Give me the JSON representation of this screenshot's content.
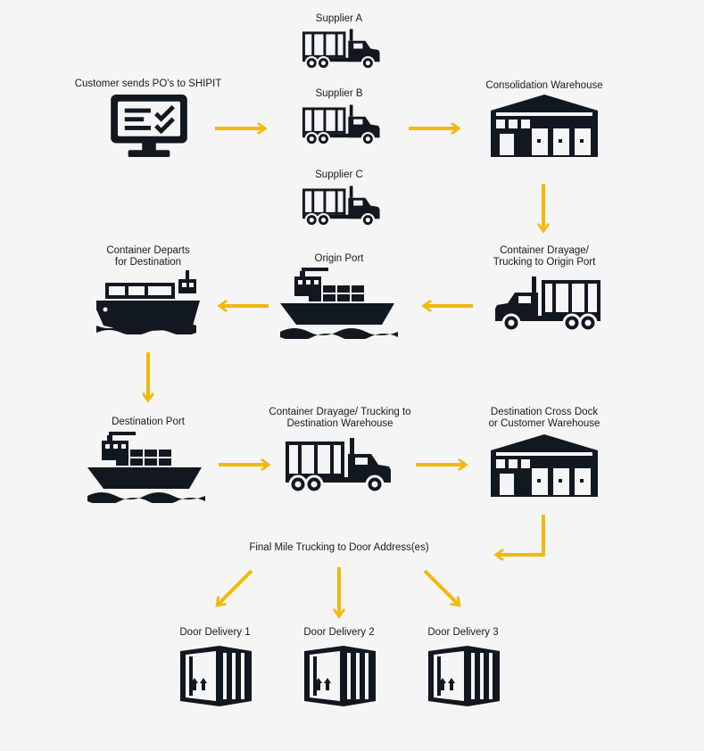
{
  "labels": {
    "supplier_a": "Supplier A",
    "supplier_b": "Supplier B",
    "supplier_c": "Supplier C",
    "customer": "Customer sends PO's to SHIPIT",
    "consolidation": "Consolidation Warehouse",
    "drayage_origin_1": "Container Drayage/",
    "drayage_origin_2": "Trucking to Origin Port",
    "origin_port": "Origin Port",
    "departs_1": "Container Departs",
    "departs_2": "for Destination",
    "destination_port": "Destination Port",
    "drayage_dest_1": "Container Drayage/ Trucking to",
    "drayage_dest_2": "Destination Warehouse",
    "crossdock_1": "Destination Cross Dock",
    "crossdock_2": "or Customer Warehouse",
    "final_mile": "Final Mile Trucking to Door Address(es)",
    "door_1": "Door Delivery 1",
    "door_2": "Door Delivery 2",
    "door_3": "Door Delivery 3"
  },
  "icons": {
    "customer": "computer-checklist-icon",
    "supplier": "truck-icon",
    "warehouse": "warehouse-icon",
    "ship": "cargo-ship-icon",
    "container_ship": "container-ship-icon",
    "door": "shipping-container-icon"
  },
  "colors": {
    "arrow": "#f0b90b",
    "icon": "#121820",
    "background": "#f5f5f5"
  }
}
